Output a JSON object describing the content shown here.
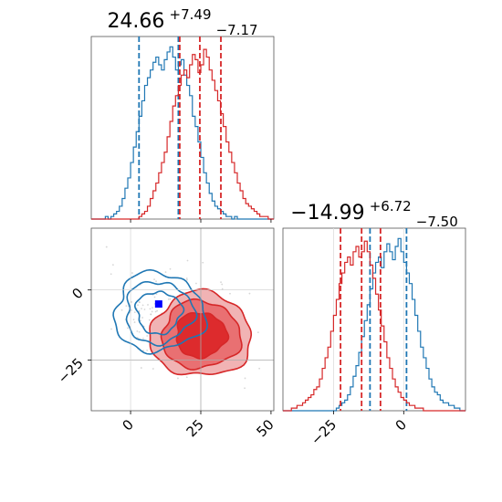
{
  "chart_data": [
    {
      "type": "histogram",
      "panel": "top-left",
      "title_value": "24.66",
      "title_plus": "+7.49",
      "title_minus": "−7.17",
      "xlim": [
        -14,
        51
      ],
      "bins_x": [
        -14,
        51
      ],
      "series": [
        {
          "color": "#1f77b4",
          "counts": [
            0,
            0,
            0,
            0,
            0,
            1,
            0,
            1,
            2,
            3,
            5,
            8,
            12,
            16,
            22,
            28,
            34,
            40,
            46,
            52,
            55,
            58,
            61,
            63,
            60,
            58,
            62,
            65,
            67,
            63,
            58,
            60,
            62,
            56,
            52,
            48,
            40,
            36,
            30,
            24,
            18,
            14,
            10,
            7,
            5,
            4,
            3,
            2,
            1,
            1,
            0,
            1,
            0,
            0,
            0,
            0,
            0,
            0,
            0,
            0,
            0,
            0,
            0,
            0,
            0
          ],
          "quantiles": [
            3.0,
            17.0
          ]
        },
        {
          "color": "#d62728",
          "counts": [
            0,
            0,
            0,
            0,
            0,
            0,
            0,
            0,
            0,
            0,
            0,
            0,
            0,
            0,
            0,
            0,
            0,
            1,
            2,
            3,
            5,
            8,
            11,
            14,
            18,
            22,
            26,
            32,
            38,
            44,
            48,
            52,
            56,
            58,
            55,
            60,
            64,
            62,
            57,
            60,
            66,
            63,
            58,
            54,
            50,
            46,
            41,
            36,
            30,
            26,
            22,
            18,
            14,
            11,
            8,
            6,
            5,
            4,
            3,
            2,
            1,
            1,
            1,
            0,
            0
          ],
          "quantiles": [
            17.5,
            24.66,
            32.15
          ]
        }
      ]
    },
    {
      "type": "contour",
      "panel": "bottom-left",
      "xlim": [
        -14,
        51
      ],
      "ylim": [
        -43,
        22
      ],
      "xticks": [
        "0",
        "25",
        "50"
      ],
      "xtick_values": [
        0,
        25,
        50
      ],
      "yticks": [
        "0",
        "−25"
      ],
      "ytick_values": [
        0,
        -25
      ],
      "crosshair": {
        "x": 25,
        "y": -25
      },
      "marker": {
        "x": 10,
        "y": -5,
        "color": "#0000ff"
      },
      "series": [
        {
          "color": "#1f77b4",
          "center": [
            10,
            -8
          ],
          "radii": [
            [
              8,
              7.5
            ],
            [
              12,
              11
            ],
            [
              16,
              14
            ]
          ]
        },
        {
          "color": "#d62728",
          "center": [
            25,
            -16
          ],
          "radii": [
            [
              9,
              8
            ],
            [
              14,
              12
            ],
            [
              18,
              15
            ]
          ]
        }
      ]
    },
    {
      "type": "histogram",
      "panel": "bottom-right",
      "title_value": "−14.99",
      "title_plus": "+6.72",
      "title_minus": "−7.50",
      "xlim": [
        -43,
        22
      ],
      "xticks": [
        "−25",
        "0"
      ],
      "xtick_values": [
        -25,
        0
      ],
      "series": [
        {
          "color": "#1f77b4",
          "counts": [
            0,
            0,
            0,
            0,
            0,
            0,
            0,
            0,
            0,
            0,
            0,
            0,
            0,
            0,
            0,
            0,
            0,
            0,
            0,
            1,
            2,
            3,
            4,
            6,
            9,
            13,
            17,
            22,
            28,
            34,
            40,
            46,
            52,
            56,
            58,
            54,
            60,
            63,
            60,
            57,
            62,
            65,
            60,
            56,
            52,
            48,
            42,
            36,
            30,
            24,
            20,
            16,
            12,
            9,
            7,
            6,
            4,
            3,
            3,
            2,
            2,
            1,
            1,
            0,
            0
          ],
          "quantiles": [
            -12.0,
            1.0
          ]
        },
        {
          "color": "#d62728",
          "counts": [
            0,
            0,
            0,
            1,
            1,
            2,
            2,
            3,
            4,
            5,
            6,
            8,
            9,
            12,
            16,
            20,
            24,
            30,
            36,
            42,
            48,
            52,
            56,
            58,
            55,
            60,
            62,
            58,
            60,
            64,
            60,
            55,
            50,
            44,
            38,
            32,
            26,
            20,
            16,
            12,
            9,
            7,
            5,
            4,
            3,
            2,
            2,
            1,
            1,
            1,
            0,
            0,
            0,
            0,
            0,
            0,
            0,
            0,
            0,
            0,
            0,
            0,
            0,
            0,
            0
          ],
          "quantiles": [
            -22.49,
            -14.99,
            -8.27
          ]
        }
      ]
    }
  ]
}
